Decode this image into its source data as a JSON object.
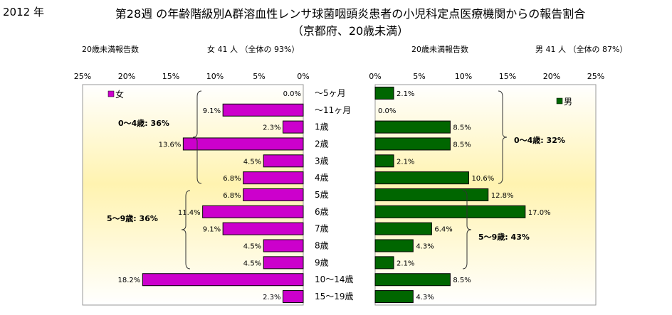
{
  "header": {
    "year": "2012 年",
    "title_line1": "第28週 の年齢階級別A群溶血性レンサ球菌咽頭炎患者の小児科定点医療機関からの報告割合",
    "title_line2": "（京都府、20歳未満）"
  },
  "female_header": {
    "label": "20歳未満報告数",
    "summary": "女  41 人  （全体の  93%）"
  },
  "male_header": {
    "label": "20歳未満報告数",
    "summary": "男  41 人  （全体の  87%）"
  },
  "colors": {
    "female": "#cc00cc",
    "male": "#006600",
    "background_warm": "#fff4b0"
  },
  "chart_data": [
    {
      "type": "bar",
      "orientation": "horizontal-left",
      "legend": "女",
      "categories": [
        "〜5ヶ月",
        "〜11ヶ月",
        "1歳",
        "2歳",
        "3歳",
        "4歳",
        "5歳",
        "6歳",
        "7歳",
        "8歳",
        "9歳",
        "10〜14歳",
        "15〜19歳"
      ],
      "values": [
        0.0,
        9.1,
        2.3,
        13.6,
        4.5,
        6.8,
        6.8,
        11.4,
        9.1,
        4.5,
        4.5,
        18.2,
        2.3
      ],
      "value_labels": [
        "0.0%",
        "9.1%",
        "2.3%",
        "13.6%",
        "4.5%",
        "6.8%",
        "6.8%",
        "11.4%",
        "9.1%",
        "4.5%",
        "4.5%",
        "18.2%",
        "2.3%"
      ],
      "xlim": [
        0,
        25
      ],
      "ticks": [
        "25%",
        "20%",
        "15%",
        "10%",
        "5%",
        "0%"
      ],
      "annotations": [
        "0〜4歳: 36%",
        "5〜9歳: 36%"
      ]
    },
    {
      "type": "bar",
      "orientation": "horizontal-right",
      "legend": "男",
      "categories": [
        "〜5ヶ月",
        "〜11ヶ月",
        "1歳",
        "2歳",
        "3歳",
        "4歳",
        "5歳",
        "6歳",
        "7歳",
        "8歳",
        "9歳",
        "10〜14歳",
        "15〜19歳"
      ],
      "values": [
        2.1,
        0.0,
        8.5,
        8.5,
        2.1,
        10.6,
        12.8,
        17.0,
        6.4,
        4.3,
        2.1,
        8.5,
        4.3
      ],
      "value_labels": [
        "2.1%",
        "0.0%",
        "8.5%",
        "8.5%",
        "2.1%",
        "10.6%",
        "12.8%",
        "17.0%",
        "6.4%",
        "4.3%",
        "2.1%",
        "8.5%",
        "4.3%"
      ],
      "xlim": [
        0,
        25
      ],
      "ticks": [
        "0%",
        "5%",
        "10%",
        "15%",
        "20%",
        "25%"
      ],
      "annotations": [
        "0〜4歳: 32%",
        "5〜9歳: 43%"
      ]
    }
  ]
}
